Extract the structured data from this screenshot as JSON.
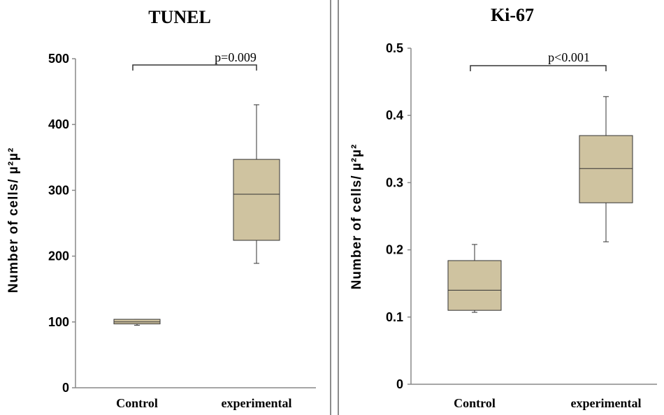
{
  "chart_data": [
    {
      "type": "box",
      "title": "TUNEL",
      "xlabel": "",
      "ylabel": "Number of cells/ µ²µ²",
      "ylim": [
        0,
        500
      ],
      "yticks": [
        "0",
        "100",
        "200",
        "300",
        "400",
        "500"
      ],
      "categories": [
        "Control",
        "experimental"
      ],
      "boxes": [
        {
          "category": "Control",
          "min": 95,
          "q1": 97,
          "median": 100,
          "q3": 104,
          "max": 104
        },
        {
          "category": "experimental",
          "min": 189,
          "q1": 224,
          "median": 294,
          "q3": 347,
          "max": 430
        }
      ],
      "annotation": "p=0.009",
      "grid": false,
      "box_color": "#cfc3a0"
    },
    {
      "type": "box",
      "title": "Ki-67",
      "xlabel": "",
      "ylabel": "Number of cells/ µ²µ²",
      "ylim": [
        0,
        0.5
      ],
      "yticks": [
        "0",
        "0.1",
        "0.2",
        "0.3",
        "0.4",
        "0.5"
      ],
      "categories": [
        "Control",
        "experimental"
      ],
      "boxes": [
        {
          "category": "Control",
          "min": 0.107,
          "q1": 0.11,
          "median": 0.14,
          "q3": 0.184,
          "max": 0.208
        },
        {
          "category": "experimental",
          "min": 0.212,
          "q1": 0.27,
          "median": 0.321,
          "q3": 0.37,
          "max": 0.428
        }
      ],
      "annotation": "p<0.001",
      "grid": false,
      "box_color": "#cfc3a0"
    }
  ]
}
